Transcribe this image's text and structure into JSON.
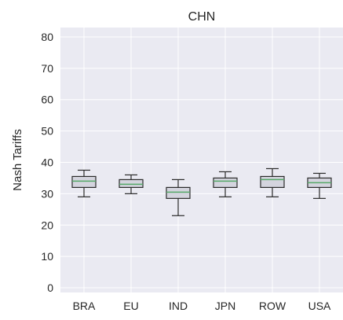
{
  "chart_data": {
    "type": "box",
    "title": "CHN",
    "xlabel": "",
    "ylabel": "Nash Tariffs",
    "ylim": [
      0,
      80
    ],
    "yticks": [
      0,
      10,
      20,
      30,
      40,
      50,
      60,
      70,
      80
    ],
    "grid": true,
    "colors": {
      "plot_background": "#eaeaf2",
      "grid": "#ffffff",
      "box_face": "#d4d4de",
      "box_edge": "#2b2b2b",
      "median": "#55a868"
    },
    "categories": [
      "BRA",
      "EU",
      "IND",
      "JPN",
      "ROW",
      "USA"
    ],
    "boxes": [
      {
        "category": "BRA",
        "whisker_low": 29.0,
        "q1": 32.0,
        "median": 34.0,
        "q3": 35.5,
        "whisker_high": 37.5
      },
      {
        "category": "EU",
        "whisker_low": 30.0,
        "q1": 32.0,
        "median": 33.0,
        "q3": 34.5,
        "whisker_high": 36.0
      },
      {
        "category": "IND",
        "whisker_low": 23.0,
        "q1": 28.5,
        "median": 30.5,
        "q3": 32.0,
        "whisker_high": 34.5
      },
      {
        "category": "JPN",
        "whisker_low": 29.0,
        "q1": 32.0,
        "median": 34.0,
        "q3": 35.0,
        "whisker_high": 37.0
      },
      {
        "category": "ROW",
        "whisker_low": 29.0,
        "q1": 32.0,
        "median": 34.5,
        "q3": 35.5,
        "whisker_high": 38.0
      },
      {
        "category": "USA",
        "whisker_low": 28.5,
        "q1": 32.0,
        "median": 33.5,
        "q3": 35.0,
        "whisker_high": 36.5
      }
    ]
  }
}
